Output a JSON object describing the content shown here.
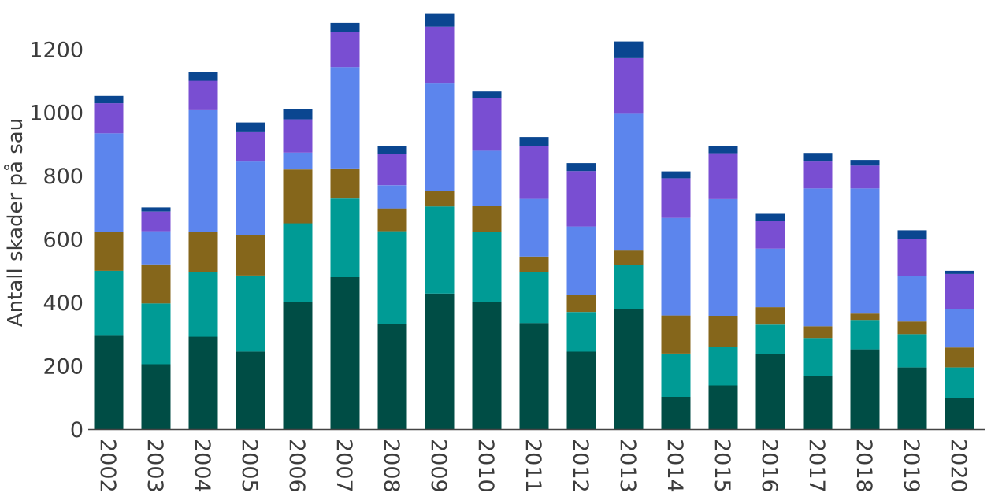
{
  "chart_data": {
    "type": "bar",
    "stacked": true,
    "ylabel": "Antall skader på sau",
    "xlabel": "",
    "ylim": [
      0,
      1330
    ],
    "yticks": [
      0,
      200,
      400,
      600,
      800,
      1000,
      1200
    ],
    "grid": false,
    "legend": "none",
    "categories": [
      "2002",
      "2003",
      "2004",
      "2005",
      "2006",
      "2007",
      "2008",
      "2009",
      "2010",
      "2011",
      "2012",
      "2013",
      "2014",
      "2015",
      "2016",
      "2017",
      "2018",
      "2019",
      "2020"
    ],
    "series": [
      {
        "color": "#004d45",
        "values": [
          295,
          205,
          292,
          245,
          402,
          480,
          332,
          428,
          402,
          335,
          245,
          380,
          102,
          138,
          238,
          168,
          252,
          195,
          98
        ]
      },
      {
        "color": "#009b95",
        "values": [
          205,
          192,
          203,
          240,
          248,
          248,
          293,
          275,
          220,
          160,
          125,
          137,
          137,
          122,
          92,
          120,
          93,
          105,
          97
        ]
      },
      {
        "color": "#85661b",
        "values": [
          122,
          123,
          127,
          127,
          170,
          95,
          72,
          48,
          82,
          50,
          55,
          47,
          120,
          98,
          55,
          37,
          20,
          40,
          63
        ]
      },
      {
        "color": "#5c85ed",
        "values": [
          312,
          105,
          385,
          233,
          53,
          320,
          73,
          340,
          175,
          182,
          215,
          432,
          308,
          368,
          185,
          435,
          395,
          143,
          122
        ]
      },
      {
        "color": "#794ed2",
        "values": [
          95,
          62,
          93,
          95,
          105,
          110,
          100,
          180,
          165,
          168,
          175,
          175,
          125,
          145,
          88,
          85,
          72,
          118,
          110
        ]
      },
      {
        "color": "#0a4690",
        "values": [
          23,
          13,
          28,
          28,
          32,
          30,
          25,
          40,
          22,
          27,
          25,
          53,
          22,
          22,
          22,
          27,
          18,
          27,
          10
        ]
      }
    ]
  }
}
